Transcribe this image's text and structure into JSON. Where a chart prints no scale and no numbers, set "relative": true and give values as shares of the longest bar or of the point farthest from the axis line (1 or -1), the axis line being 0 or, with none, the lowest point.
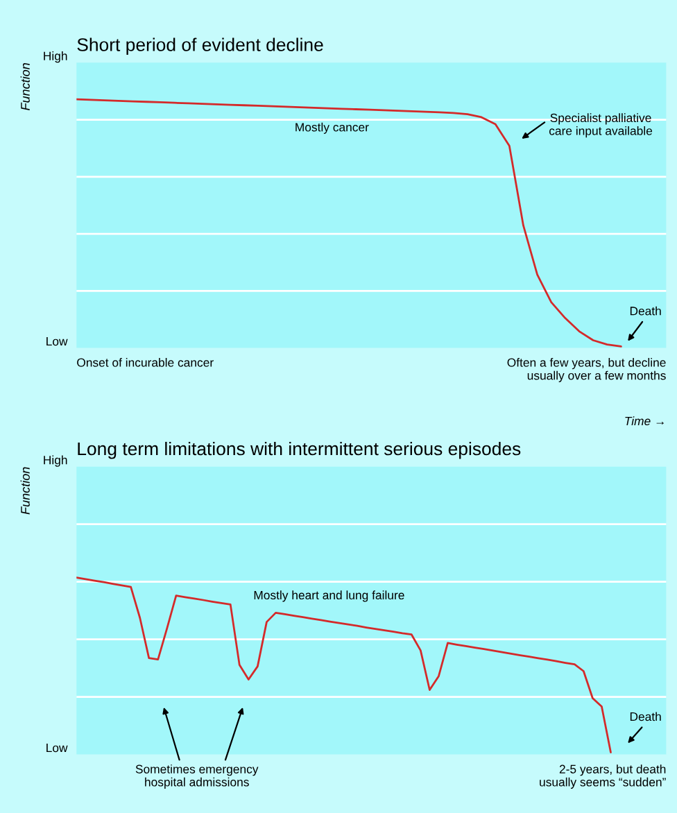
{
  "chart_data": [
    {
      "type": "line",
      "title": "Short period of evident decline",
      "ylabel": "Function",
      "relative": true,
      "categories": [
        null,
        null,
        null,
        null,
        null,
        null,
        null,
        null,
        null,
        null,
        null,
        null,
        null,
        null,
        null,
        null,
        null,
        null,
        null,
        null,
        null,
        null,
        null,
        null,
        null,
        null,
        null,
        null,
        null,
        null,
        null,
        null,
        null,
        null,
        null,
        null,
        null,
        null,
        null,
        null
      ],
      "series": [
        {
          "color": "#d42a2a",
          "values": [
            1.0,
            0.998,
            0.996,
            0.994,
            0.992,
            0.99,
            0.988,
            0.986,
            0.984,
            0.982,
            0.98,
            0.978,
            0.976,
            0.974,
            0.972,
            0.97,
            0.968,
            0.966,
            0.964,
            0.962,
            0.96,
            0.958,
            0.956,
            0.954,
            0.952,
            0.95,
            0.948,
            0.945,
            0.94,
            0.928,
            0.9,
            0.813,
            0.493,
            0.295,
            0.184,
            0.12,
            0.067,
            0.031,
            0.014,
            0.006
          ]
        }
      ],
      "grid": "y",
      "marker": "none",
      "line_style": "solid",
      "annotations": [
        "High",
        "Low",
        "Mostly cancer",
        "Specialist palliative\ncare input available",
        "Death",
        "Onset of incurable cancer",
        "Often a few years, but decline\nusually over a few months",
        "Time →"
      ]
    },
    {
      "type": "line",
      "title": "Long term limitations with intermittent serious episodes",
      "ylabel": "Function",
      "relative": true,
      "categories": [
        null,
        null,
        null,
        null,
        null,
        null,
        null,
        null,
        null,
        null,
        null,
        null,
        null,
        null,
        null,
        null,
        null,
        null,
        null,
        null,
        null,
        null,
        null,
        null,
        null,
        null,
        null,
        null,
        null,
        null,
        null,
        null,
        null,
        null,
        null,
        null,
        null,
        null,
        null,
        null,
        null,
        null,
        null,
        null,
        null,
        null,
        null,
        null,
        null,
        null,
        null,
        null,
        null,
        null,
        null,
        null,
        null,
        null,
        null,
        null
      ],
      "series": [
        {
          "color": "#d42a2a",
          "values": [
            1.0,
            0.991,
            0.982,
            0.974,
            0.965,
            0.956,
            0.947,
            0.773,
            0.545,
            0.537,
            0.714,
            0.898,
            0.889,
            0.881,
            0.873,
            0.864,
            0.856,
            0.848,
            0.506,
            0.424,
            0.498,
            0.749,
            0.801,
            0.793,
            0.784,
            0.776,
            0.768,
            0.76,
            0.751,
            0.743,
            0.735,
            0.727,
            0.718,
            0.71,
            0.702,
            0.694,
            0.685,
            0.678,
            0.588,
            0.365,
            0.443,
            0.63,
            0.621,
            0.613,
            0.604,
            0.596,
            0.587,
            0.578,
            0.57,
            0.561,
            0.553,
            0.544,
            0.536,
            0.527,
            0.518,
            0.51,
            0.471,
            0.318,
            0.271,
            0.012
          ]
        }
      ],
      "grid": "y",
      "marker": "none",
      "line_style": "solid",
      "annotations": [
        "High",
        "Low",
        "Mostly heart and lung failure",
        "Sometimes emergency\nhospital admissions",
        "Death",
        "2-5 years, but death\nusually seems “sudden”"
      ]
    }
  ]
}
